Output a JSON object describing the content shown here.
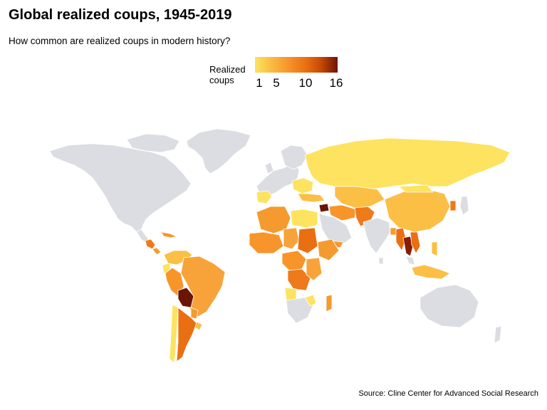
{
  "title": "Global realized coups, 1945-2019",
  "subtitle": "How common are realized coups in modern history?",
  "legend": {
    "title_line1": "Realized",
    "title_line2": "coups",
    "ticks": [
      "1",
      "5",
      "10",
      "16"
    ],
    "min": 1,
    "max": 16
  },
  "source": "Source: Cline Center for Advanced Social Research",
  "colors": {
    "no_data": "#dcdde2",
    "scale_low": "#fde35f",
    "scale_mid": "#f7952b",
    "scale_high": "#6b1505"
  }
}
